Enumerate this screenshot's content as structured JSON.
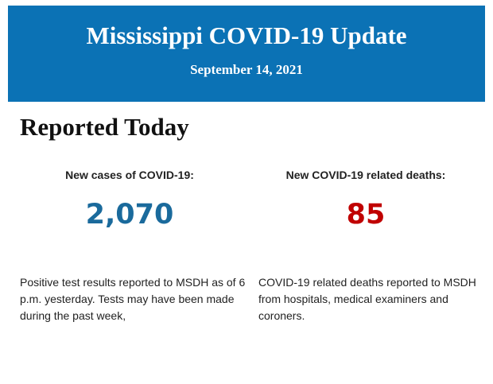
{
  "header": {
    "title": "Mississippi COVID-19 Update",
    "date": "September 14, 2021"
  },
  "section": {
    "title": "Reported Today",
    "stats": [
      {
        "label": "New cases of COVID-19:",
        "value": "2,070",
        "description": "Positive test results reported to MSDH as of 6 p.m. yesterday. Tests may have been made during the past week,"
      },
      {
        "label": "New COVID-19 related deaths:",
        "value": "85",
        "description": "COVID-19 related deaths reported to MSDH from hospitals, medical examiners and coroners."
      }
    ]
  }
}
